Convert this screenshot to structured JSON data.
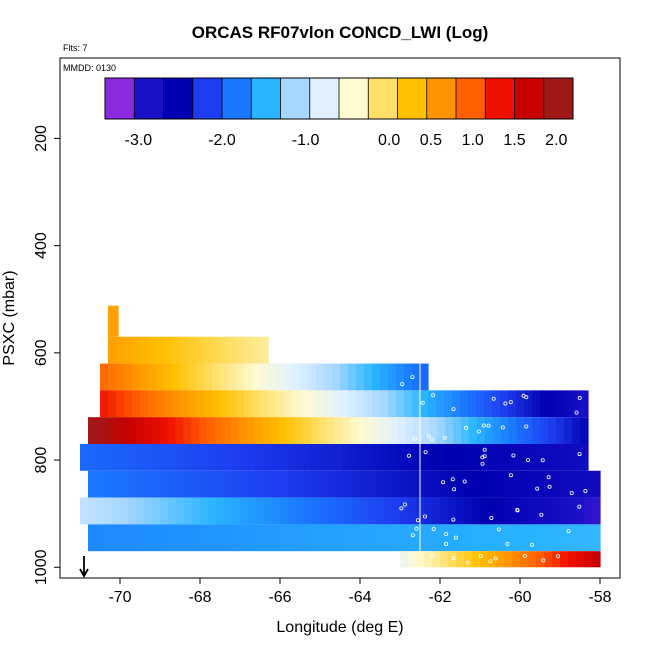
{
  "chart_data": {
    "type": "heatmap",
    "title": "ORCAS RF07vlon CONCD_LWI (Log)",
    "flts_label": "Flts: 7",
    "mmdd_label": "MMDD: 0130",
    "xlabel": "Longitude (deg E)",
    "ylabel": "PSXC (mbar)",
    "xlim": [
      -71.5,
      -57.5
    ],
    "ylim": [
      1020,
      50
    ],
    "x_ticks": [
      -70,
      -68,
      -66,
      -64,
      -62,
      -60,
      -58
    ],
    "x_tick_labels": [
      "-70",
      "-68",
      "-66",
      "-64",
      "-62",
      "-60",
      "-58"
    ],
    "y_ticks": [
      200,
      400,
      600,
      800,
      1000
    ],
    "y_tick_labels": [
      "200",
      "400",
      "600",
      "800",
      "1000"
    ],
    "colorbar": {
      "range": [
        -3.4,
        2.2
      ],
      "ticks": [
        -3.0,
        -2.0,
        -1.0,
        0.0,
        0.5,
        1.0,
        1.5,
        2.0
      ],
      "tick_labels": [
        "-3.0",
        "-2.0",
        "-1.0",
        "0.0",
        "0.5",
        "1.0",
        "1.5",
        "2.0"
      ],
      "colors": [
        "#8a2be2",
        "#1a10c8",
        "#0000b0",
        "#1e3cf0",
        "#1a78ff",
        "#28b4ff",
        "#a8d8ff",
        "#e0f0ff",
        "#fffad0",
        "#ffe068",
        "#ffc000",
        "#ff9400",
        "#ff6000",
        "#f01000",
        "#c80000",
        "#a01818"
      ]
    },
    "layers": [
      {
        "p_top": 512,
        "p_bot": 570,
        "x_start": -70.3,
        "x_end": -70.05,
        "c_start": 0.6,
        "c_end": 0.6
      },
      {
        "p_top": 570,
        "p_bot": 620,
        "x_start": -70.3,
        "x_end": -66.3,
        "c_start": 0.6,
        "c_end": -0.2
      },
      {
        "p_top": 620,
        "p_bot": 670,
        "x_start": -70.5,
        "x_end": -62.3,
        "c_start": 1.0,
        "c_end": -2.0
      },
      {
        "p_top": 670,
        "p_bot": 720,
        "x_start": -70.5,
        "x_end": -58.3,
        "c_start": 1.4,
        "c_end": -3.0
      },
      {
        "p_top": 720,
        "p_bot": 770,
        "x_start": -70.8,
        "x_end": -58.3,
        "c_start": 2.2,
        "c_end": -2.6
      },
      {
        "p_top": 770,
        "p_bot": 820,
        "x_start": -71.0,
        "x_end": -58.3,
        "c_start": -2.0,
        "c_end": -2.9
      },
      {
        "p_top": 820,
        "p_bot": 870,
        "x_start": -70.8,
        "x_end": -58.0,
        "c_start": -1.9,
        "c_end": -2.9
      },
      {
        "p_top": 870,
        "p_bot": 920,
        "x_start": -71.0,
        "x_end": -58.0,
        "c_start": -1.0,
        "c_end": -3.1
      },
      {
        "p_top": 920,
        "p_bot": 970,
        "x_start": -70.8,
        "x_end": -58.0,
        "c_start": -1.8,
        "c_end": -1.5
      },
      {
        "p_top": 970,
        "p_bot": 1000,
        "x_start": -63.0,
        "x_end": -58.0,
        "c_start": -0.6,
        "c_end": 1.8
      }
    ],
    "arrow_x": -70.9
  }
}
